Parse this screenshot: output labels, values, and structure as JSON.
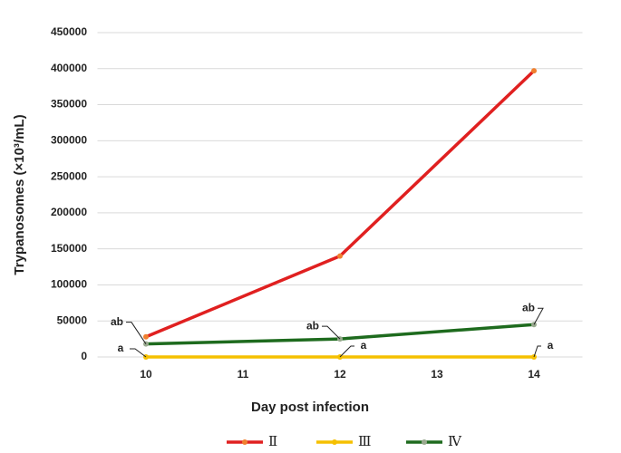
{
  "chart_data": {
    "type": "line",
    "x_label": "Day post infection",
    "y_label": "Trypanosomes (×10³/mL)",
    "x": [
      10,
      12,
      14
    ],
    "xlim": [
      9.5,
      14.5
    ],
    "xticks": [
      10,
      11,
      12,
      13,
      14
    ],
    "ylim": [
      0,
      450000
    ],
    "yticks": [
      0,
      50000,
      100000,
      150000,
      200000,
      250000,
      300000,
      350000,
      400000,
      450000
    ],
    "grid": true,
    "legend": "bottom",
    "series": [
      {
        "name": "Ⅱ",
        "color": "#e02020",
        "marker_color": "#f08030",
        "values": [
          28000,
          140000,
          397000
        ]
      },
      {
        "name": "Ⅲ",
        "color": "#f5c000",
        "marker_color": "#f5c000",
        "values": [
          0,
          0,
          0
        ]
      },
      {
        "name": "Ⅳ",
        "color": "#1e6b1e",
        "marker_color": "#9aaa90",
        "values": [
          18000,
          25000,
          45000
        ]
      }
    ],
    "annotations": [
      "ab",
      "a",
      "ab",
      "a",
      "ab",
      "a"
    ]
  }
}
